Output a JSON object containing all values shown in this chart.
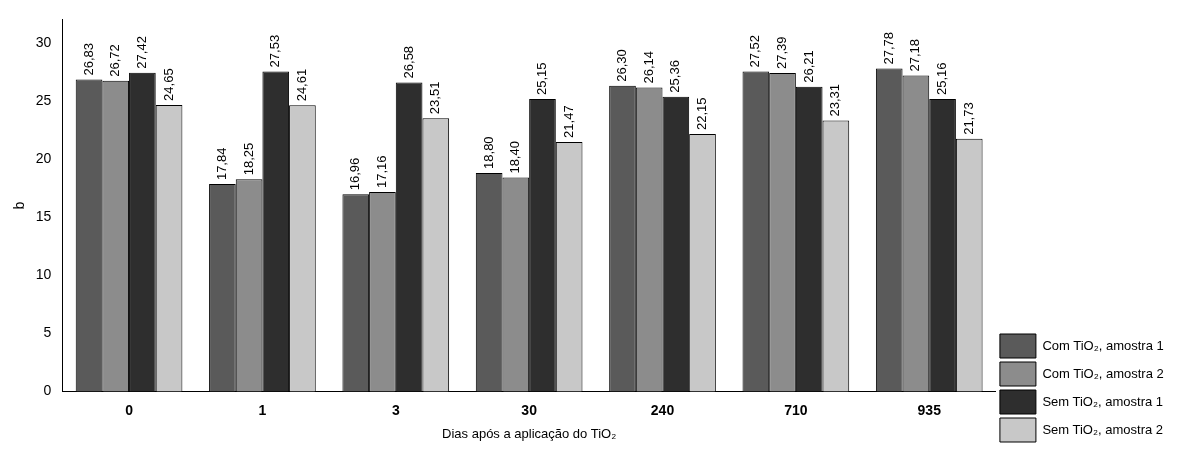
{
  "chart_data": {
    "type": "bar",
    "xlabel": "Dias após a aplicação do TiO₂",
    "ylabel": "b",
    "categories": [
      "0",
      "1",
      "3",
      "30",
      "240",
      "710",
      "935"
    ],
    "series": [
      {
        "name": "Com TiO₂, amostra 1",
        "color": "#5a5a5a",
        "values": [
          26.83,
          17.84,
          16.96,
          18.8,
          26.3,
          27.52,
          27.78
        ],
        "value_labels": [
          "26,83",
          "17,84",
          "16,96",
          "18,80",
          "26,30",
          "27,52",
          "27,78"
        ]
      },
      {
        "name": "Com TiO₂, amostra 2",
        "color": "#8c8c8c",
        "values": [
          26.72,
          18.25,
          17.16,
          18.4,
          26.14,
          27.39,
          27.18
        ],
        "value_labels": [
          "26,72",
          "18,25",
          "17,16",
          "18,40",
          "26,14",
          "27,39",
          "27,18"
        ]
      },
      {
        "name": "Sem TiO₂, amostra 1",
        "color": "#2e2e2e",
        "values": [
          27.42,
          27.53,
          26.58,
          25.15,
          25.36,
          26.21,
          25.16
        ],
        "value_labels": [
          "27,42",
          "27,53",
          "26,58",
          "25,15",
          "25,36",
          "26,21",
          "25,16"
        ]
      },
      {
        "name": "Sem TiO₂, amostra 2",
        "color": "#c8c8c8",
        "values": [
          24.65,
          24.61,
          23.51,
          21.47,
          22.15,
          23.31,
          21.73
        ],
        "value_labels": [
          "24,65",
          "24,61",
          "23,51",
          "21,47",
          "22,15",
          "23,31",
          "21,73"
        ]
      }
    ],
    "ylim": [
      0,
      32
    ],
    "yticks": [
      0,
      5,
      10,
      15,
      20,
      25,
      30
    ],
    "grid": false,
    "legend": "right"
  }
}
